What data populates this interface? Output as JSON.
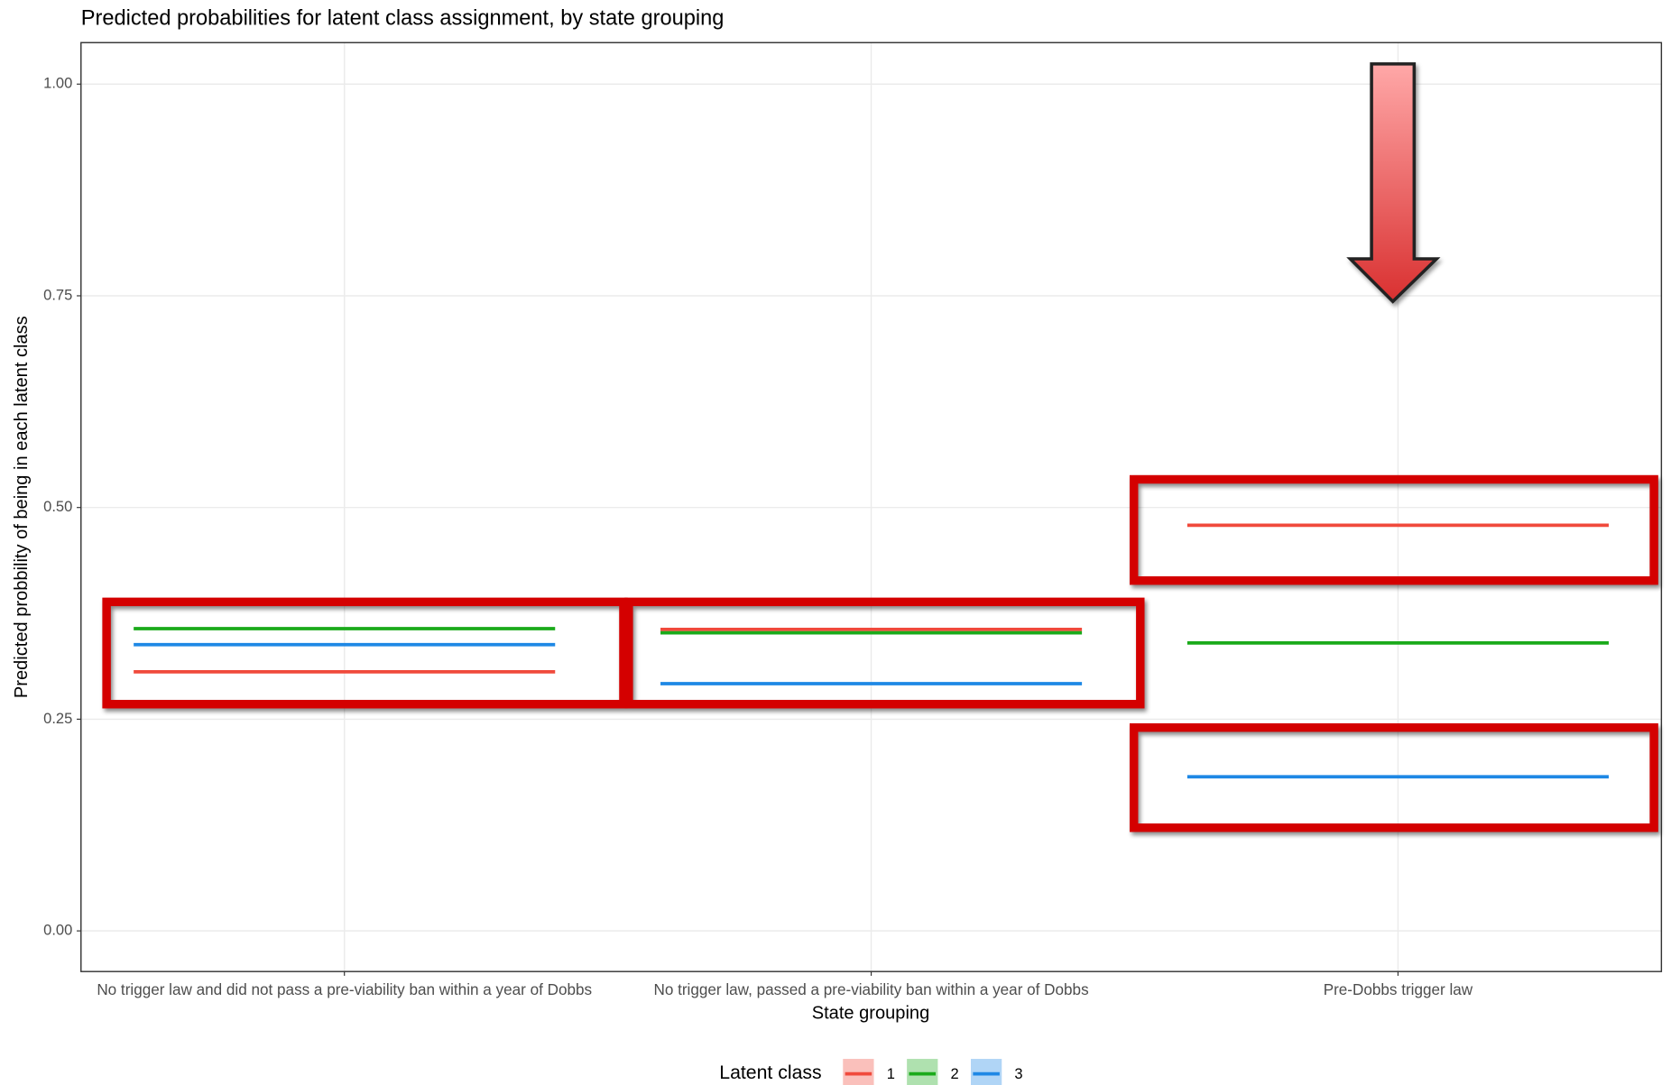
{
  "chart_data": {
    "type": "line",
    "title": "Predicted probabilities for latent class assignment, by state grouping",
    "xlabel": "State grouping",
    "ylabel": "Predicted probbility of being in each latent class",
    "legend_title": "Latent class",
    "categories": [
      "No trigger law and did not pass a pre-viability ban within a year of Dobbs",
      "No trigger law, passed a pre-viability ban within a year of Dobbs",
      "Pre-Dobbs trigger law"
    ],
    "series": [
      {
        "name": "1",
        "color": "#f04a3c",
        "values": [
          0.306,
          0.356,
          0.479
        ]
      },
      {
        "name": "2",
        "color": "#1aaa1a",
        "values": [
          0.357,
          0.352,
          0.34
        ]
      },
      {
        "name": "3",
        "color": "#1e88e5",
        "values": [
          0.338,
          0.292,
          0.182
        ]
      }
    ],
    "ylim": [
      -0.048,
      1.049
    ],
    "yticks": [
      {
        "value": 0,
        "label": "0.00"
      },
      {
        "value": 0.25,
        "label": "0.25"
      },
      {
        "value": 0.5,
        "label": "0.50"
      },
      {
        "value": 0.75,
        "label": "0.75"
      },
      {
        "value": 1,
        "label": "1.00"
      }
    ],
    "grid": true,
    "legend": "bottom"
  }
}
